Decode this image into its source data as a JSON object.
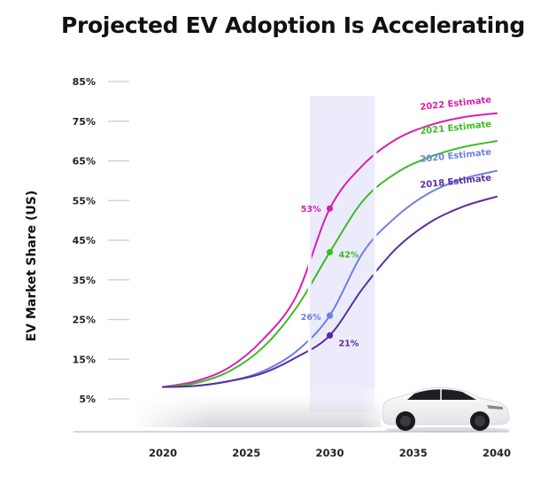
{
  "chart_data": {
    "type": "line",
    "title": "Projected EV Adoption Is Accelerating",
    "xlabel": "",
    "ylabel": "EV Market Share (US)",
    "x_ticks": [
      "2020",
      "2025",
      "2030",
      "2035",
      "2040"
    ],
    "y_ticks": [
      "85%",
      "75%",
      "65%",
      "55%",
      "45%",
      "35%",
      "25%",
      "15%",
      "5%"
    ],
    "xlim": [
      2020,
      2040
    ],
    "ylim": [
      5,
      85
    ],
    "grid": false,
    "highlight_band": {
      "x_start": 2028.8,
      "x_end": 2032.7,
      "color": "#ecebfb"
    },
    "series": [
      {
        "name": "2022 Estimate",
        "color": "#d81fae",
        "x": [
          2020,
          2022,
          2024,
          2026,
          2028,
          2030,
          2032,
          2034,
          2036,
          2038,
          2040
        ],
        "values": [
          8,
          9.5,
          13,
          20,
          31,
          53,
          64,
          70.5,
          74,
          76,
          77
        ],
        "highlight": {
          "x": 2030,
          "value": 53,
          "label": "53%"
        }
      },
      {
        "name": "2021 Estimate",
        "color": "#3dbb23",
        "x": [
          2020,
          2022,
          2024,
          2026,
          2028,
          2030,
          2032,
          2034,
          2036,
          2038,
          2040
        ],
        "values": [
          8,
          9,
          12,
          18,
          28,
          42,
          55,
          62,
          66,
          68.5,
          70
        ],
        "highlight": {
          "x": 2030,
          "value": 42,
          "label": "42%"
        }
      },
      {
        "name": "2020 Estimate",
        "color": "#6e80e0",
        "x": [
          2020,
          2022,
          2024,
          2026,
          2028,
          2030,
          2032,
          2034,
          2036,
          2038,
          2040
        ],
        "values": [
          8,
          8.3,
          9.5,
          12,
          17,
          26,
          42,
          51,
          57,
          60.5,
          62.5
        ],
        "highlight": {
          "x": 2030,
          "value": 26,
          "label": "26%"
        }
      },
      {
        "name": "2018 Estimate",
        "color": "#5a2d9e",
        "x": [
          2020,
          2022,
          2024,
          2026,
          2028,
          2030,
          2032,
          2034,
          2036,
          2038,
          2040
        ],
        "values": [
          8,
          8.3,
          9.5,
          11.5,
          15.5,
          21,
          33,
          43,
          49.5,
          53.5,
          56
        ],
        "highlight": {
          "x": 2030,
          "value": 21,
          "label": "21%"
        }
      }
    ],
    "annotations": [
      "53%",
      "42%",
      "26%",
      "21%"
    ]
  },
  "decorations": {
    "car_image": "white-electric-suv"
  }
}
